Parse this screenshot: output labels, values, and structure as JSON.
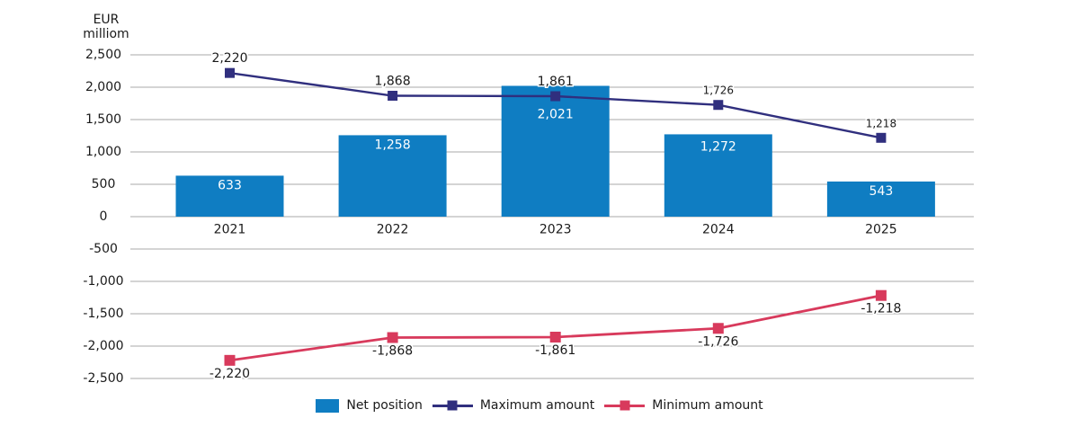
{
  "colors": {
    "bar": "#0f7dc2",
    "max_line": "#302f7e",
    "min_line": "#d83a5c",
    "grid": "#a9a9a9",
    "text": "#1a1a1a",
    "bar_label": "#ffffff",
    "background": "#ffffff"
  },
  "chart_data": {
    "type": "combo-bar-line",
    "title": "",
    "y_axis_title_lines": [
      "EUR",
      "milliom"
    ],
    "categories": [
      "2021",
      "2022",
      "2023",
      "2024",
      "2025"
    ],
    "series": [
      {
        "name": "Net position",
        "kind": "bar",
        "values": [
          633,
          1258,
          2021,
          1272,
          543
        ],
        "labels": [
          "633",
          "1,258",
          "2,021",
          "1,272",
          "543"
        ],
        "label_dy": [
          11,
          11,
          32,
          14,
          11
        ]
      },
      {
        "name": "Maximum amount",
        "kind": "line",
        "values": [
          2220,
          1868,
          1861,
          1726,
          1218
        ],
        "labels": [
          "2,220",
          "1,868",
          "1,861",
          "1,726",
          "1,218"
        ],
        "label_dy": -16,
        "small_labels": [
          false,
          false,
          false,
          true,
          true
        ]
      },
      {
        "name": "Minimum amount",
        "kind": "line",
        "values": [
          -2220,
          -1868,
          -1861,
          -1726,
          -1218
        ],
        "labels": [
          "-2,220",
          "-1,868",
          "-1,861",
          "-1,726",
          "-1,218"
        ],
        "label_dy": 15,
        "small_labels": [
          false,
          false,
          false,
          false,
          false
        ]
      }
    ],
    "y_ticks": [
      "2,500",
      "2,000",
      "1,500",
      "1,000",
      "500",
      "0",
      "-500",
      "-1,000",
      "-1,500",
      "-2,000",
      "-2,500"
    ],
    "ylim": [
      -2500,
      2500
    ],
    "grid": true,
    "legend_position": "bottom"
  }
}
